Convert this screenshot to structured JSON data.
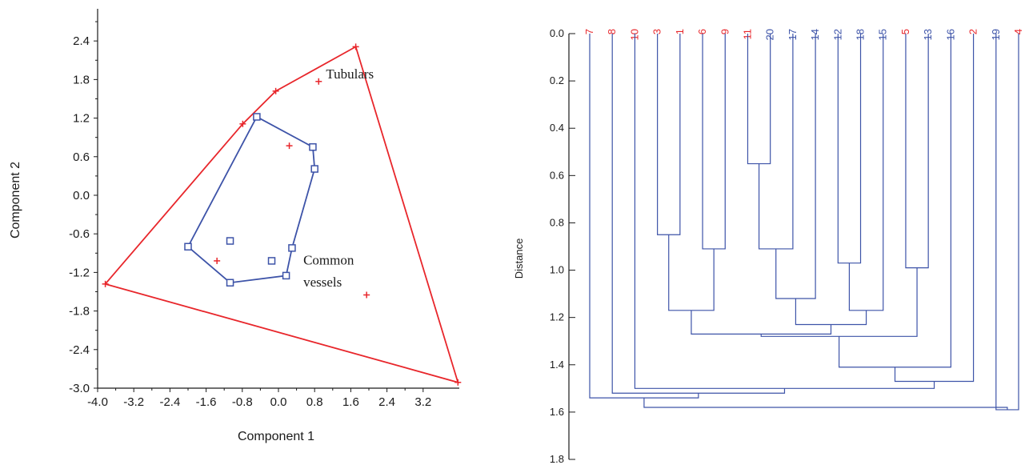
{
  "chart_data": [
    {
      "type": "scatter",
      "title": "",
      "xlabel": "Component 1",
      "ylabel": "Component 2",
      "xlim": [
        -4.0,
        4.0
      ],
      "ylim": [
        -3.0,
        2.9
      ],
      "xticks": [
        "-4.0",
        "-3.2",
        "-2.4",
        "-1.6",
        "-0.8",
        "0.0",
        "0.8",
        "1.6",
        "2.4",
        "3.2"
      ],
      "yticks": [
        "2.4",
        "1.8",
        "1.2",
        "0.6",
        "0.0",
        "-0.6",
        "-1.2",
        "-1.8",
        "-2.4",
        "-3.0"
      ],
      "annotations": [
        {
          "text": "Tubulars",
          "x": 1.05,
          "y": 1.82
        },
        {
          "text": "Common",
          "x": 0.55,
          "y": -1.08
        },
        {
          "text": "vessels",
          "x": 0.55,
          "y": -1.42
        }
      ],
      "series": [
        {
          "marker": "plus",
          "color": "#e8262b",
          "points": [
            {
              "x": -3.83,
              "y": -1.38
            },
            {
              "x": -0.79,
              "y": 1.11
            },
            {
              "x": -0.06,
              "y": 1.62
            },
            {
              "x": 1.71,
              "y": 2.31
            },
            {
              "x": 0.89,
              "y": 1.77
            },
            {
              "x": 0.24,
              "y": 0.77
            },
            {
              "x": -1.36,
              "y": -1.02
            },
            {
              "x": 1.95,
              "y": -1.55
            },
            {
              "x": 3.97,
              "y": -2.91
            }
          ],
          "hull": [
            {
              "x": -3.83,
              "y": -1.38
            },
            {
              "x": -0.79,
              "y": 1.11
            },
            {
              "x": -0.06,
              "y": 1.62
            },
            {
              "x": 1.71,
              "y": 2.31
            },
            {
              "x": 3.97,
              "y": -2.91
            }
          ]
        },
        {
          "marker": "square",
          "color": "#3d53a8",
          "points": [
            {
              "x": -0.48,
              "y": 1.22
            },
            {
              "x": 0.76,
              "y": 0.75
            },
            {
              "x": 0.8,
              "y": 0.41
            },
            {
              "x": -2.0,
              "y": -0.8
            },
            {
              "x": -1.07,
              "y": -0.71
            },
            {
              "x": -0.15,
              "y": -1.02
            },
            {
              "x": 0.3,
              "y": -0.82
            },
            {
              "x": 0.17,
              "y": -1.25
            },
            {
              "x": -1.07,
              "y": -1.36
            }
          ],
          "hull": [
            {
              "x": -0.48,
              "y": 1.22
            },
            {
              "x": 0.76,
              "y": 0.75
            },
            {
              "x": 0.8,
              "y": 0.41
            },
            {
              "x": 0.3,
              "y": -0.82
            },
            {
              "x": 0.17,
              "y": -1.25
            },
            {
              "x": -1.07,
              "y": -1.36
            },
            {
              "x": -2.0,
              "y": -0.8
            }
          ]
        }
      ]
    },
    {
      "type": "dendrogram",
      "ylabel": "Distance",
      "ylim": [
        0.0,
        1.8
      ],
      "yticks": [
        "0.0",
        "0.2",
        "0.4",
        "0.6",
        "0.8",
        "1.0",
        "1.2",
        "1.4",
        "1.6",
        "1.8"
      ],
      "leaves": [
        {
          "label": "7",
          "color": "#e8262b"
        },
        {
          "label": "8",
          "color": "#e8262b"
        },
        {
          "label": "10",
          "color": "#e8262b"
        },
        {
          "label": "3",
          "color": "#e8262b"
        },
        {
          "label": "1",
          "color": "#e8262b"
        },
        {
          "label": "6",
          "color": "#e8262b"
        },
        {
          "label": "9",
          "color": "#e8262b"
        },
        {
          "label": "11",
          "color": "#e8262b"
        },
        {
          "label": "20",
          "color": "#3d53a8"
        },
        {
          "label": "17",
          "color": "#3d53a8"
        },
        {
          "label": "14",
          "color": "#3d53a8"
        },
        {
          "label": "12",
          "color": "#3d53a8"
        },
        {
          "label": "18",
          "color": "#3d53a8"
        },
        {
          "label": "15",
          "color": "#3d53a8"
        },
        {
          "label": "5",
          "color": "#e8262b"
        },
        {
          "label": "13",
          "color": "#3d53a8"
        },
        {
          "label": "16",
          "color": "#3d53a8"
        },
        {
          "label": "2",
          "color": "#e8262b"
        },
        {
          "label": "19",
          "color": "#3d53a8"
        },
        {
          "label": "4",
          "color": "#e8262b"
        }
      ],
      "merges": [
        {
          "id": "n1",
          "left": "3",
          "right": "1",
          "height": 0.85
        },
        {
          "id": "n2",
          "left": "6",
          "right": "9",
          "height": 0.91
        },
        {
          "id": "n3",
          "left": "11",
          "right": "20",
          "height": 0.55
        },
        {
          "id": "n4",
          "left": "n3",
          "right": "17",
          "height": 0.91
        },
        {
          "id": "n5",
          "left": "n4",
          "right": "14",
          "height": 1.12
        },
        {
          "id": "n6",
          "left": "12",
          "right": "18",
          "height": 0.97
        },
        {
          "id": "n7",
          "left": "n6",
          "right": "15",
          "height": 1.17
        },
        {
          "id": "n8",
          "left": "5",
          "right": "13",
          "height": 0.99
        },
        {
          "id": "n9",
          "left": "n1",
          "right": "n2",
          "height": 1.17
        },
        {
          "id": "n10",
          "left": "n5",
          "right": "n7",
          "height": 1.23
        },
        {
          "id": "n11",
          "left": "n9",
          "right": "n10",
          "height": 1.27
        },
        {
          "id": "n12",
          "left": "n11",
          "right": "n8",
          "height": 1.28
        },
        {
          "id": "n13",
          "left": "n12",
          "right": "16",
          "height": 1.41
        },
        {
          "id": "n14",
          "left": "n13",
          "right": "2",
          "height": 1.47
        },
        {
          "id": "n15",
          "left": "10",
          "right": "n14",
          "height": 1.5
        },
        {
          "id": "n16",
          "left": "8",
          "right": "n15",
          "height": 1.52
        },
        {
          "id": "n17",
          "left": "7",
          "right": "n16",
          "height": 1.54
        },
        {
          "id": "n18",
          "left": "19",
          "right": "4",
          "height": 1.59
        },
        {
          "id": "n19",
          "left": "n17",
          "right": "n18",
          "height": 1.58
        }
      ]
    }
  ],
  "colors": {
    "group_red": "#e8262b",
    "group_blue": "#3d53a8",
    "axis": "#1a1a1a"
  }
}
